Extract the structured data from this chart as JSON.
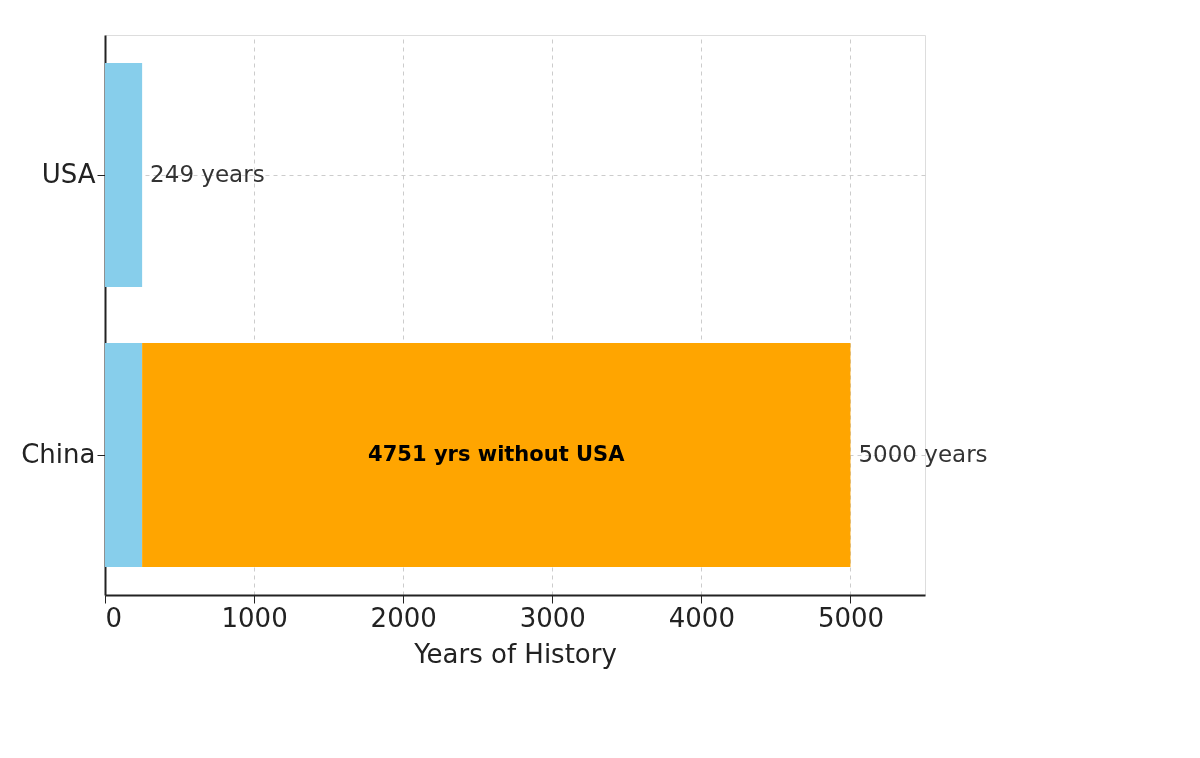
{
  "chart_data": {
    "type": "bar",
    "orientation": "horizontal",
    "stacked": true,
    "categories": [
      "USA",
      "China"
    ],
    "series": [
      {
        "color": "#87ceeb",
        "values": [
          249,
          249
        ]
      },
      {
        "color": "#ffa500",
        "values": [
          null,
          4751
        ],
        "value_labels": [
          null,
          "4751 yrs without USA"
        ]
      }
    ],
    "totals": [
      "249 years",
      "5000 years"
    ],
    "xlabel": "Years of History",
    "xlim": [
      0,
      5500
    ],
    "xticks": [
      0,
      1000,
      2000,
      3000,
      4000,
      5000
    ],
    "grid": true
  }
}
